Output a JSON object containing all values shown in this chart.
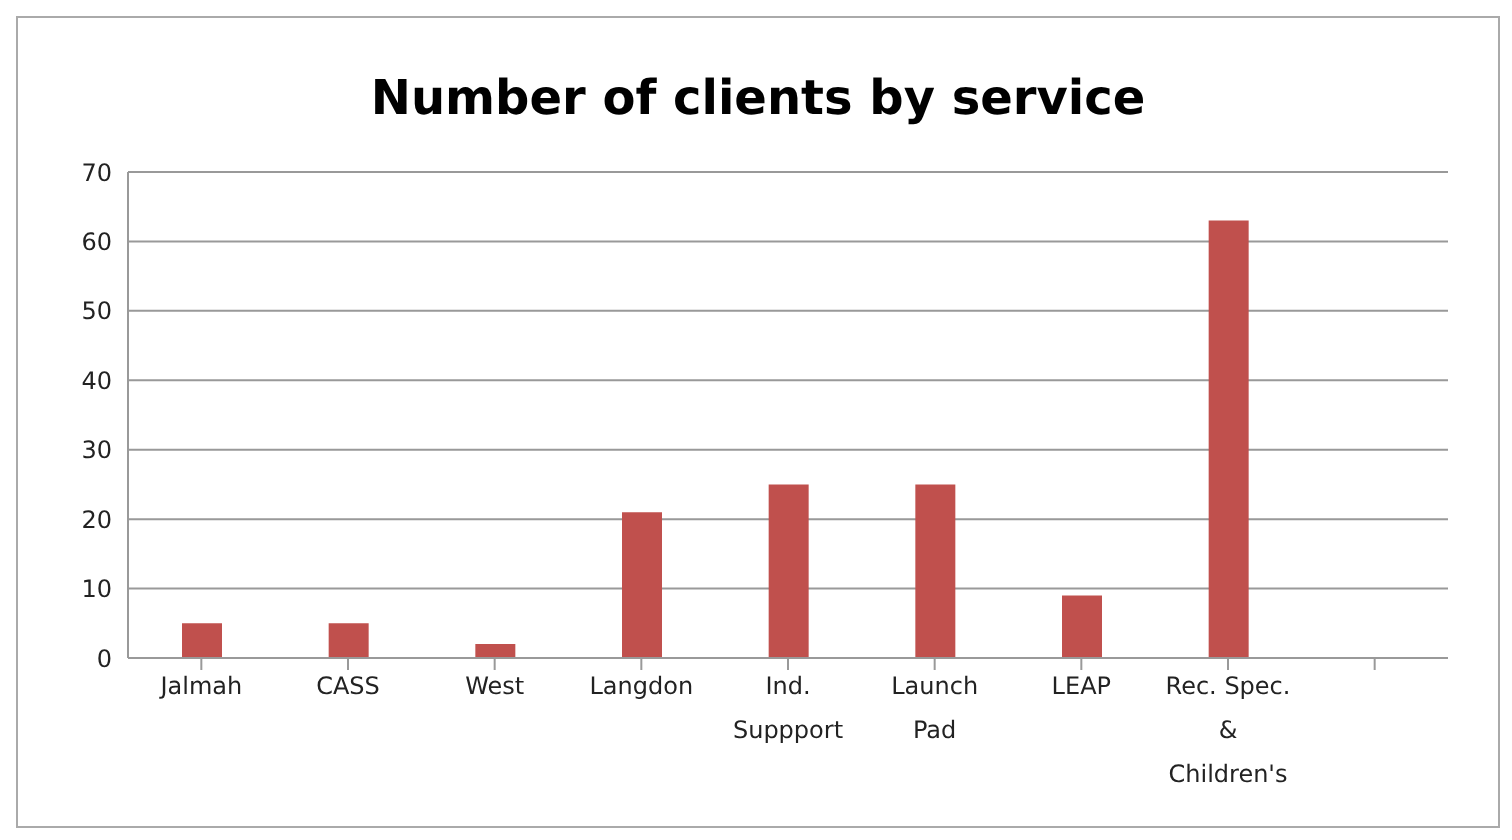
{
  "chart_data": {
    "type": "bar",
    "title": "Number of clients by service",
    "categories": [
      "Jalmah",
      "CASS",
      "West",
      "Langdon",
      "Ind.\nSuppport",
      "Launch\nPad",
      "LEAP",
      "Rec. Spec.\n&\nChildren's",
      null
    ],
    "values": [
      5,
      5,
      2,
      21,
      25,
      25,
      9,
      63,
      null
    ],
    "color": "#c0504d",
    "ylim": [
      0,
      70
    ],
    "yticks": [
      0,
      10,
      20,
      30,
      40,
      50,
      60,
      70
    ],
    "grid": "y"
  }
}
